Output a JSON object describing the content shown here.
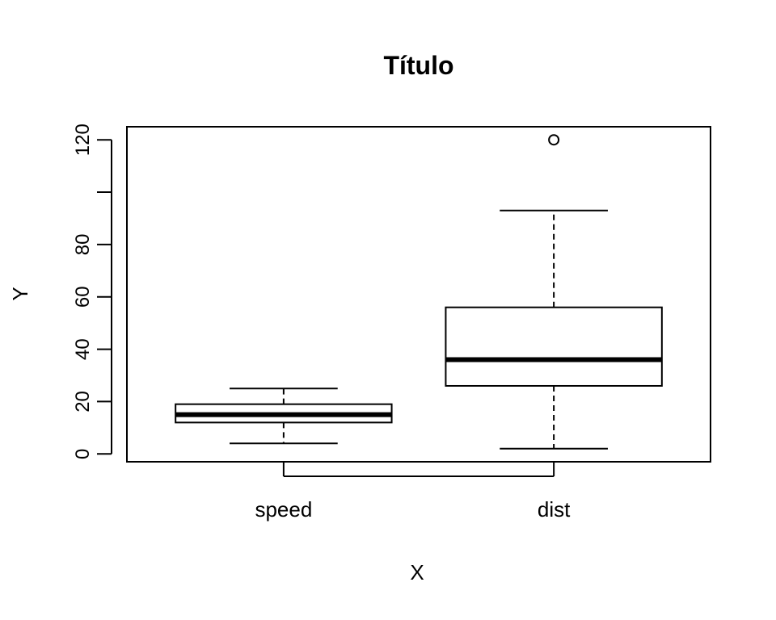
{
  "chart_data": {
    "type": "boxplot",
    "title": "Título",
    "xlabel": "X",
    "ylabel": "Y",
    "ylim": [
      -3,
      125
    ],
    "y_ticks": [
      0,
      20,
      40,
      60,
      80,
      100,
      120
    ],
    "y_tick_labels": [
      "0",
      "20",
      "40",
      "60",
      "80",
      "",
      "120"
    ],
    "categories": [
      "speed",
      "dist"
    ],
    "boxes": [
      {
        "name": "speed",
        "whisker_low": 4,
        "q1": 12,
        "median": 15,
        "q3": 19,
        "whisker_high": 25,
        "outliers": []
      },
      {
        "name": "dist",
        "whisker_low": 2,
        "q1": 26,
        "median": 36,
        "q3": 56,
        "whisker_high": 93,
        "outliers": [
          120
        ]
      }
    ],
    "grid": false,
    "legend": "none"
  }
}
